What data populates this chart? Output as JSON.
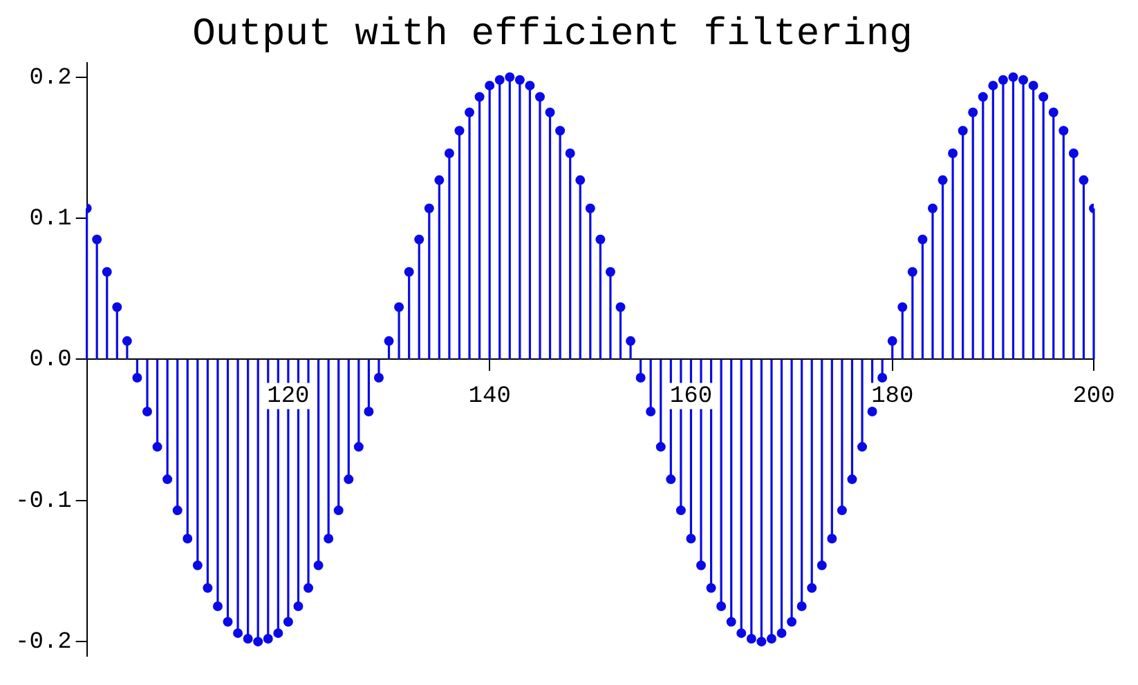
{
  "chart_data": {
    "type": "lollipop",
    "title": "Output with efficient filtering",
    "x": [
      100,
      101,
      102,
      103,
      104,
      105,
      106,
      107,
      108,
      109,
      110,
      111,
      112,
      113,
      114,
      115,
      116,
      117,
      118,
      119,
      120,
      121,
      122,
      123,
      124,
      125,
      126,
      127,
      128,
      129,
      130,
      131,
      132,
      133,
      134,
      135,
      136,
      137,
      138,
      139,
      140,
      141,
      142,
      143,
      144,
      145,
      146,
      147,
      148,
      149,
      150,
      151,
      152,
      153,
      154,
      155,
      156,
      157,
      158,
      159,
      160,
      161,
      162,
      163,
      164,
      165,
      166,
      167,
      168,
      169,
      170,
      171,
      172,
      173,
      174,
      175,
      176,
      177,
      178,
      179,
      180,
      181,
      182,
      183,
      184,
      185,
      186,
      187,
      188,
      189,
      190,
      191,
      192,
      193,
      194,
      195,
      196,
      197,
      198,
      199,
      200
    ],
    "values": [
      0.107,
      0.085,
      0.062,
      0.037,
      0.013,
      -0.013,
      -0.037,
      -0.062,
      -0.085,
      -0.107,
      -0.127,
      -0.146,
      -0.162,
      -0.175,
      -0.186,
      -0.194,
      -0.198,
      -0.2,
      -0.198,
      -0.194,
      -0.186,
      -0.175,
      -0.162,
      -0.146,
      -0.127,
      -0.107,
      -0.085,
      -0.062,
      -0.037,
      -0.013,
      0.013,
      0.037,
      0.062,
      0.085,
      0.107,
      0.127,
      0.146,
      0.162,
      0.175,
      0.186,
      0.194,
      0.198,
      0.2,
      0.198,
      0.194,
      0.186,
      0.175,
      0.162,
      0.146,
      0.127,
      0.107,
      0.085,
      0.062,
      0.037,
      0.013,
      -0.013,
      -0.037,
      -0.062,
      -0.085,
      -0.107,
      -0.127,
      -0.146,
      -0.162,
      -0.175,
      -0.186,
      -0.194,
      -0.198,
      -0.2,
      -0.198,
      -0.194,
      -0.186,
      -0.175,
      -0.162,
      -0.146,
      -0.127,
      -0.107,
      -0.085,
      -0.062,
      -0.037,
      -0.013,
      0.013,
      0.037,
      0.062,
      0.085,
      0.107,
      0.127,
      0.146,
      0.162,
      0.175,
      0.186,
      0.194,
      0.198,
      0.2,
      0.198,
      0.194,
      0.186,
      0.175,
      0.162,
      0.146,
      0.127,
      0.107
    ],
    "color": "#0a0ae6",
    "marker": "circle",
    "xlim": [
      100,
      200
    ],
    "xticks": [
      120,
      140,
      160,
      180,
      200
    ],
    "ylim": [
      -0.21,
      0.21
    ],
    "yticks": [
      -0.2,
      -0.1,
      {
        "value": 0,
        "label": "0.0"
      },
      0.1,
      0.2
    ]
  }
}
